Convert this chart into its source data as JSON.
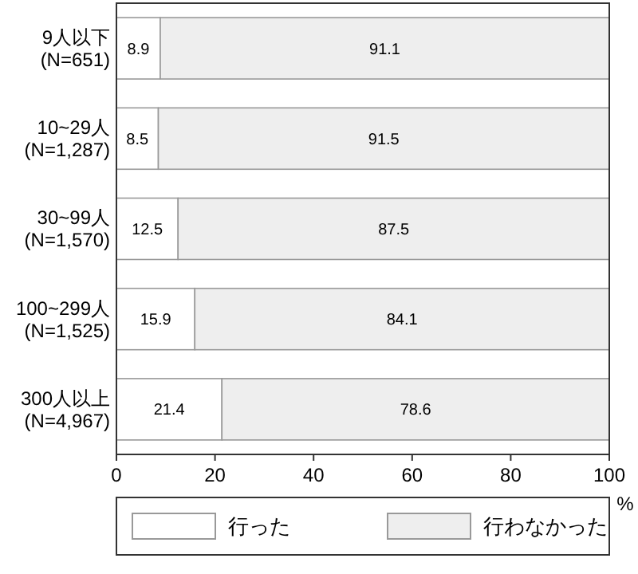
{
  "chart_data": {
    "type": "bar",
    "orientation": "horizontal",
    "stacked": true,
    "categories": [
      "9人以下\n(N=651)",
      "10~29人\n(N=1,287)",
      "30~99人\n(N=1,570)",
      "100~299人\n(N=1,525)",
      "300人以上\n(N=4,967)"
    ],
    "series": [
      {
        "name": "行った",
        "color": "#ffffff",
        "values": [
          8.9,
          8.5,
          12.5,
          15.9,
          21.4
        ]
      },
      {
        "name": "行わなかった",
        "color": "#eeeeee",
        "values": [
          91.1,
          91.5,
          87.5,
          84.1,
          78.6
        ]
      }
    ],
    "xlim": [
      0,
      100
    ],
    "xticks": [
      0,
      20,
      40,
      60,
      80,
      100
    ],
    "xlabel": "%",
    "data_labels": true,
    "legend": "bottom",
    "grid": false
  }
}
